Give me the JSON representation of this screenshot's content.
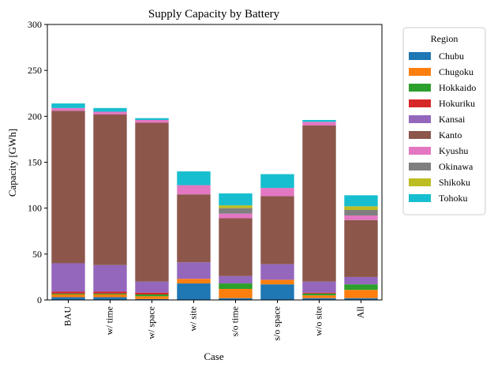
{
  "chart_data": {
    "type": "bar",
    "stacked": true,
    "title": "Supply Capacity by Battery",
    "xlabel": "Case",
    "ylabel": "Capacity [GWh]",
    "ylim": [
      0,
      300
    ],
    "yticks": [
      0,
      50,
      100,
      150,
      200,
      250,
      300
    ],
    "grid": false,
    "legend_title": "Region",
    "legend_position": "outside-right",
    "categories": [
      "BAU",
      "w/ time",
      "w/ space",
      "w/ site",
      "s/o time",
      "s/o space",
      "w/o site",
      "All"
    ],
    "series": [
      {
        "name": "Chubu",
        "color": "#1f77b4",
        "values": [
          3,
          3,
          1,
          18,
          2,
          17,
          2,
          2
        ]
      },
      {
        "name": "Chugoku",
        "color": "#ff7f0e",
        "values": [
          3,
          3,
          3,
          5,
          10,
          5,
          3,
          9
        ]
      },
      {
        "name": "Hokkaido",
        "color": "#2ca02c",
        "values": [
          1,
          1,
          2,
          0,
          6,
          0,
          2,
          6
        ]
      },
      {
        "name": "Hokuriku",
        "color": "#d62728",
        "values": [
          2,
          2,
          2,
          0,
          0,
          0,
          1,
          0
        ]
      },
      {
        "name": "Kansai",
        "color": "#9467bd",
        "values": [
          31,
          29,
          12,
          18,
          8,
          17,
          12,
          8
        ]
      },
      {
        "name": "Kanto",
        "color": "#8c564b",
        "values": [
          166,
          164,
          173,
          74,
          63,
          74,
          170,
          62
        ]
      },
      {
        "name": "Kyushu",
        "color": "#e377c2",
        "values": [
          3,
          3,
          3,
          10,
          5,
          9,
          4,
          5
        ]
      },
      {
        "name": "Okinawa",
        "color": "#7f7f7f",
        "values": [
          0,
          0,
          0,
          0,
          6,
          0,
          0,
          6
        ]
      },
      {
        "name": "Shikoku",
        "color": "#bcbd22",
        "values": [
          0,
          0,
          0,
          0,
          3,
          0,
          0,
          4
        ]
      },
      {
        "name": "Tohoku",
        "color": "#17becf",
        "values": [
          5,
          4,
          2,
          15,
          13,
          15,
          2,
          12
        ]
      }
    ]
  }
}
